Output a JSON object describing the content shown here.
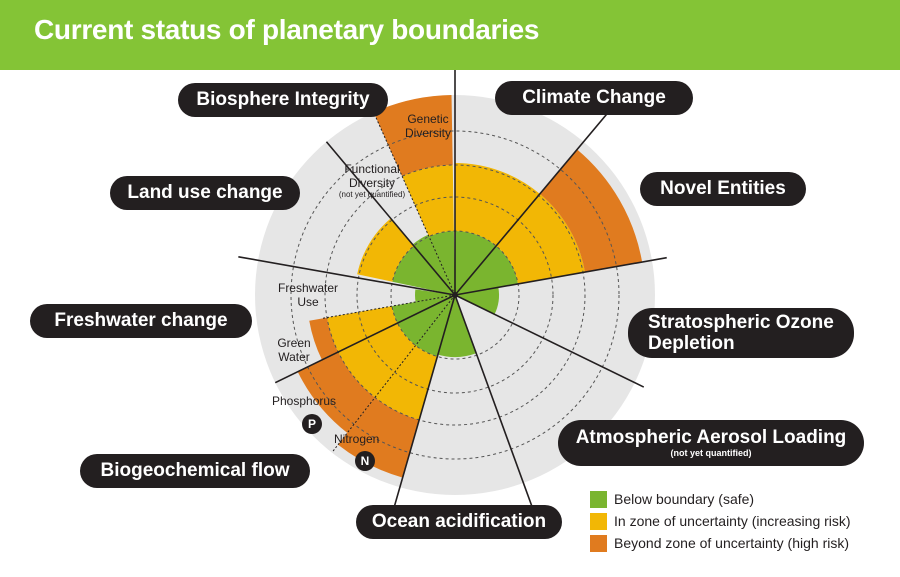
{
  "title": "Current status of planetary boundaries",
  "colors": {
    "safe": "#7ab52f",
    "uncertainty": "#f2b705",
    "high_risk": "#e07b1f",
    "background_disc": "#e6e6e6",
    "title_bar": "#84c436"
  },
  "boundaries": {
    "biosphere_integrity": "Biosphere Integrity",
    "climate_change": "Climate Change",
    "novel_entities": "Novel Entities",
    "land_use_change": "Land use change",
    "stratospheric_ozone_line1": "Stratospheric Ozone",
    "stratospheric_ozone_line2": "Depletion",
    "freshwater_change": "Freshwater change",
    "atmospheric_aerosol": "Atmospheric Aerosol Loading",
    "atmospheric_aerosol_note": "(not yet quantified)",
    "biogeochemical_flow": "Biogeochemical flow",
    "ocean_acidification": "Ocean acidification"
  },
  "sub_labels": {
    "genetic_diversity_line1": "Genetic",
    "genetic_diversity_line2": "Diversity",
    "functional_diversity_line1": "Functional",
    "functional_diversity_line2": "Diversity",
    "functional_diversity_note": "(not yet quantified)",
    "freshwater_use_line1": "Freshwater",
    "freshwater_use_line2": "Use",
    "green_water_line1": "Green",
    "green_water_line2": "Water",
    "phosphorus": "Phosphorus",
    "nitrogen": "Nitrogen",
    "phosphorus_badge": "P",
    "nitrogen_badge": "N"
  },
  "legend": [
    {
      "label": "Below boundary (safe)",
      "status": "safe"
    },
    {
      "label": "In zone of uncertainty (increasing risk)",
      "status": "uncertainty"
    },
    {
      "label": "Beyond zone of uncertainty (high risk)",
      "status": "high_risk"
    }
  ]
}
